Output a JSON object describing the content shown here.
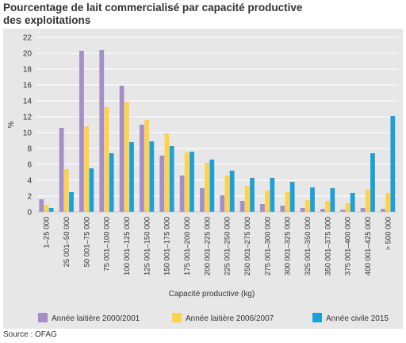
{
  "title_line1": "Pourcentage de lait commercialisé par capacité productive",
  "title_line2": "des exploitations",
  "source": "Source : OFAG",
  "chart_data": {
    "type": "bar",
    "title": "Pourcentage de lait commercialisé par capacité productive des exploitations",
    "xlabel": "Capacité productive (kg)",
    "ylabel": "%",
    "ylim": [
      0,
      22
    ],
    "yticks": [
      0,
      2,
      4,
      6,
      8,
      10,
      12,
      14,
      16,
      18,
      20,
      22
    ],
    "grid": true,
    "legend_position": "bottom",
    "categories": [
      "1–25 000",
      "25 001–50 000",
      "50 001–75 000",
      "75 001–100 000",
      "100 001–125 000",
      "125 001–150 000",
      "150 001–175 000",
      "175 001–200 000",
      "200 001–225 000",
      "225 001–250 000",
      "250 001–275 000",
      "275 001–300 000",
      "300 001–325 000",
      "325 001–350 000",
      "350 001–375 000",
      "375 001–400 000",
      "400 001–425 000",
      "> 500 000"
    ],
    "series": [
      {
        "name": "Année laitière 2000/2001",
        "color": "#a68fc7",
        "values": [
          1.6,
          10.6,
          20.3,
          20.4,
          15.9,
          11.0,
          7.1,
          4.6,
          3.0,
          2.1,
          1.4,
          1.0,
          0.8,
          0.5,
          0.4,
          0.3,
          0.5,
          0.4
        ]
      },
      {
        "name": "Année laitière 2006/2007",
        "color": "#fdd24c",
        "values": [
          0.9,
          5.4,
          10.8,
          13.2,
          13.9,
          11.6,
          9.9,
          7.5,
          6.2,
          4.6,
          3.3,
          2.7,
          2.5,
          1.5,
          1.4,
          1.1,
          2.8,
          2.4
        ]
      },
      {
        "name": "Année civile 2015",
        "color": "#1e9fd6",
        "values": [
          0.5,
          2.5,
          5.5,
          7.4,
          8.8,
          8.9,
          8.3,
          7.6,
          6.6,
          5.2,
          4.3,
          4.3,
          3.8,
          3.1,
          3.0,
          2.4,
          7.4,
          12.1
        ]
      }
    ]
  }
}
